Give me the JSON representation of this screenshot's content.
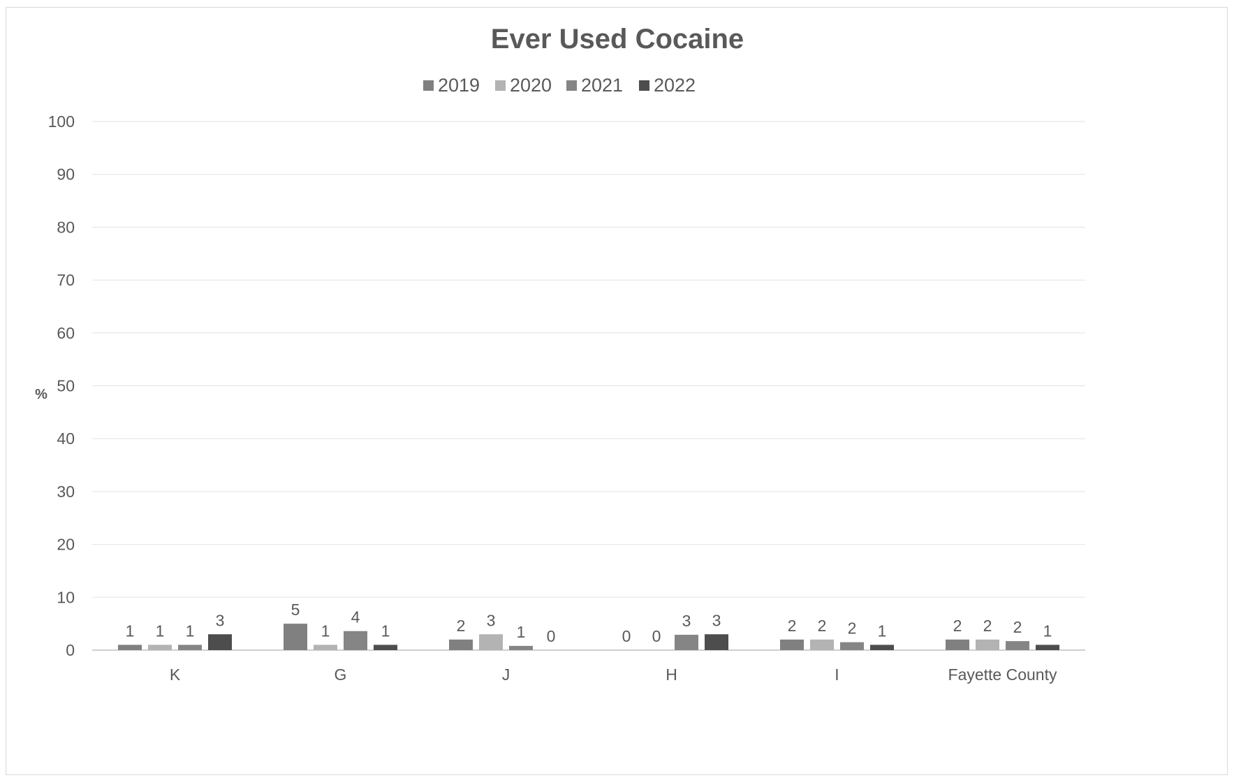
{
  "chart_data": {
    "type": "bar",
    "title": "Ever Used Cocaine",
    "xlabel": "",
    "ylabel": "%",
    "ylim": [
      0,
      100
    ],
    "yticks": [
      "0",
      "10",
      "20",
      "30",
      "40",
      "50",
      "60",
      "70",
      "80",
      "90",
      "100"
    ],
    "categories": [
      "K",
      "G",
      "J",
      "H",
      "I",
      "Fayette County"
    ],
    "legend_position": "top",
    "grid": true,
    "series": [
      {
        "name": "2019",
        "color": "#808080",
        "values": [
          1,
          5,
          2,
          0,
          2,
          2
        ],
        "labels": [
          "1",
          "5",
          "2",
          "0",
          "2",
          "2"
        ]
      },
      {
        "name": "2020",
        "color": "#b3b3b3",
        "values": [
          1,
          1,
          3,
          0,
          2,
          2
        ],
        "labels": [
          "1",
          "1",
          "3",
          "0",
          "2",
          "2"
        ]
      },
      {
        "name": "2021",
        "color": "#858585",
        "values": [
          1,
          3.6,
          0.8,
          2.9,
          1.5,
          1.7
        ],
        "labels": [
          "1",
          "4",
          "1",
          "3",
          "2",
          "2"
        ]
      },
      {
        "name": "2022",
        "color": "#4d4d4d",
        "values": [
          3,
          1,
          0,
          3,
          1,
          1
        ],
        "labels": [
          "3",
          "1",
          "0",
          "3",
          "1",
          "1"
        ]
      }
    ]
  }
}
